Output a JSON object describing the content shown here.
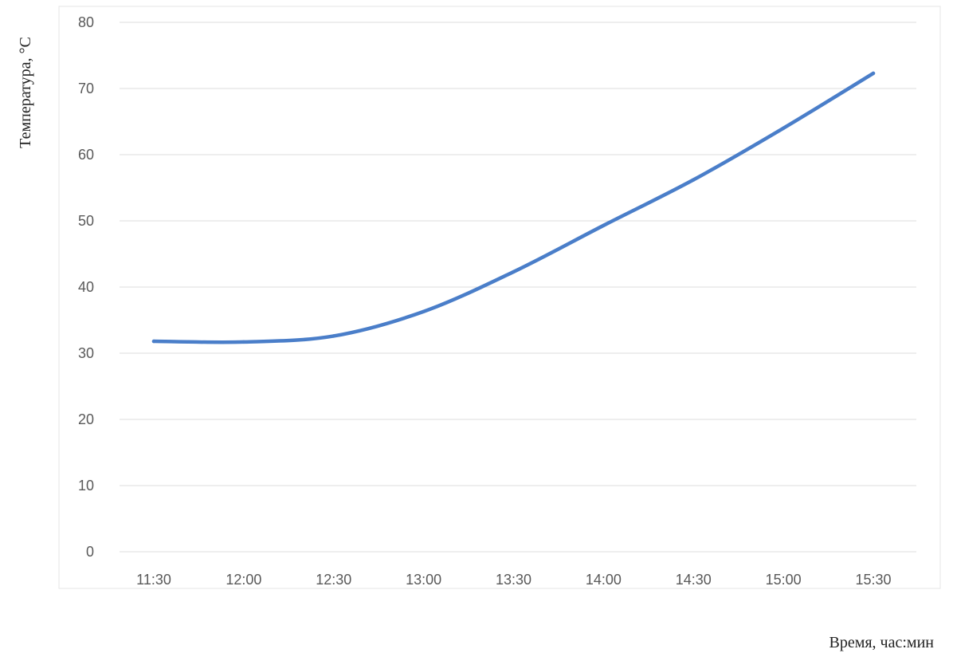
{
  "chart_data": {
    "type": "line",
    "title": "",
    "xlabel": "Время, час:мин",
    "ylabel": "Температура, °С",
    "categories": [
      "11:30",
      "12:00",
      "12:30",
      "13:00",
      "13:30",
      "14:00",
      "14:30",
      "15:00",
      "15:30"
    ],
    "series": [
      {
        "values": [
          31.8,
          31.7,
          32.6,
          36.3,
          42.3,
          49.3,
          56.2,
          64.0,
          72.3
        ],
        "color": "#4a7ec9"
      }
    ],
    "ylim": [
      0,
      80
    ],
    "yticks": [
      0,
      10,
      20,
      30,
      40,
      50,
      60,
      70,
      80
    ],
    "grid": true,
    "legend": "none",
    "line_style": "smooth"
  }
}
